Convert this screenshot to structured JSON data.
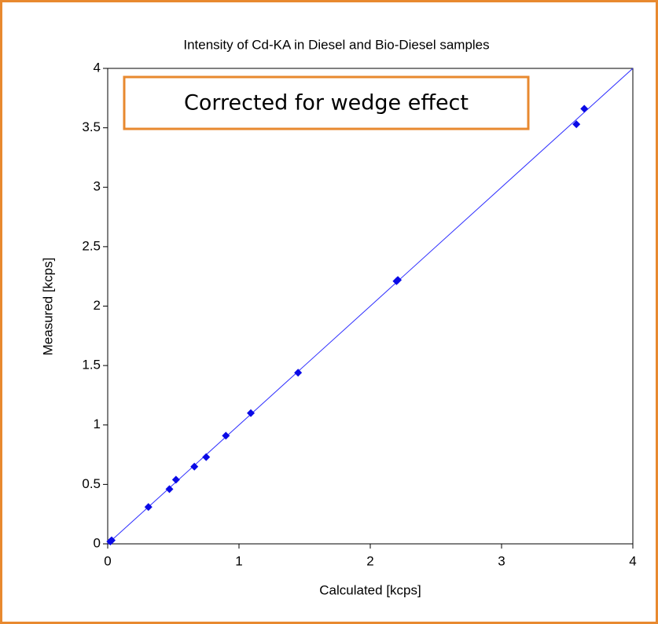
{
  "chart_data": {
    "type": "scatter",
    "title": "Intensity of Cd-KA in Diesel and Bio-Diesel samples",
    "annotation": "Corrected for wedge effect",
    "xlabel": "Calculated [kcps]",
    "ylabel": "Measured [kcps]",
    "xlim": [
      0,
      4
    ],
    "ylim": [
      0,
      4
    ],
    "xticks": [
      0,
      1,
      2,
      3,
      4
    ],
    "yticks": [
      0,
      0.5,
      1,
      1.5,
      2,
      2.5,
      3,
      3.5,
      4
    ],
    "grid": false,
    "series": [
      {
        "color": "#0a0ae6",
        "x": [
          0.02,
          0.03,
          0.31,
          0.47,
          0.52,
          0.66,
          0.75,
          0.9,
          1.09,
          1.45,
          2.2,
          2.21,
          3.57,
          3.63
        ],
        "values": [
          0.02,
          0.03,
          0.31,
          0.46,
          0.54,
          0.65,
          0.73,
          0.91,
          1.1,
          1.44,
          2.21,
          2.22,
          3.53,
          3.66
        ]
      }
    ],
    "fit_line": {
      "color": "#2b2bff",
      "x": [
        0,
        4
      ],
      "values": [
        0,
        4
      ]
    }
  }
}
